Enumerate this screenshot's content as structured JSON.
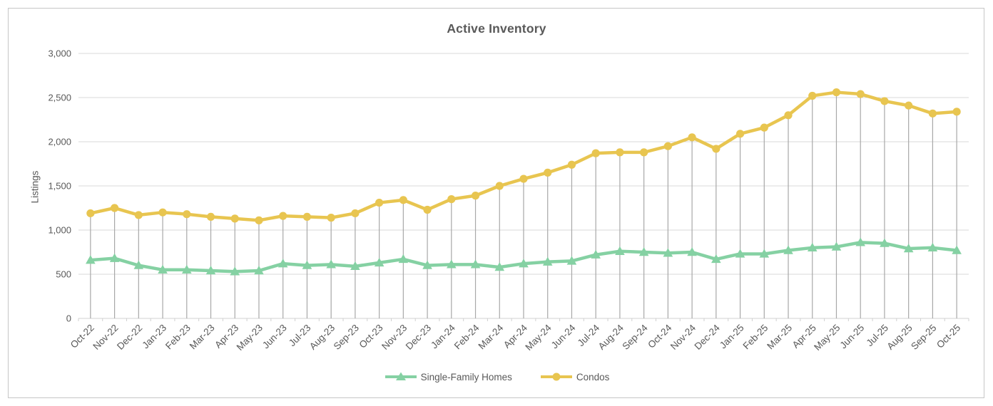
{
  "chart_data": {
    "type": "line",
    "title": "Active Inventory",
    "xlabel": "",
    "ylabel": "Listings",
    "ylim": [
      0,
      3000
    ],
    "ytick_step": 500,
    "ytick_labels": [
      "0",
      "500",
      "1,000",
      "1,500",
      "2,000",
      "2,500",
      "3,000"
    ],
    "grid": true,
    "drop_lines": true,
    "legend_position": "bottom",
    "categories": [
      "Oct-22",
      "Nov-22",
      "Dec-22",
      "Jan-23",
      "Feb-23",
      "Mar-23",
      "Apr-23",
      "May-23",
      "Jun-23",
      "Jul-23",
      "Aug-23",
      "Sep-23",
      "Oct-23",
      "Nov-23",
      "Dec-23",
      "Jan-24",
      "Feb-24",
      "Mar-24",
      "Apr-24",
      "May-24",
      "Jun-24",
      "Jul-24",
      "Aug-24",
      "Sep-24",
      "Oct-24",
      "Nov-24",
      "Dec-24",
      "Jan-25",
      "Feb-25",
      "Mar-25",
      "Apr-25",
      "May-25",
      "Jun-25",
      "Jul-25",
      "Aug-25",
      "Sep-25",
      "Oct-25"
    ],
    "series": [
      {
        "name": "Single-Family Homes",
        "marker": "triangle",
        "color": "#85d1a3",
        "values": [
          660,
          680,
          600,
          550,
          550,
          540,
          530,
          540,
          620,
          600,
          610,
          590,
          630,
          670,
          600,
          610,
          610,
          580,
          620,
          640,
          650,
          720,
          760,
          750,
          740,
          750,
          670,
          730,
          730,
          770,
          800,
          810,
          860,
          850,
          790,
          800,
          770
        ]
      },
      {
        "name": "Condos",
        "marker": "circle",
        "color": "#e8c550",
        "values": [
          1190,
          1250,
          1170,
          1200,
          1180,
          1150,
          1130,
          1110,
          1160,
          1150,
          1140,
          1190,
          1310,
          1340,
          1230,
          1350,
          1390,
          1500,
          1580,
          1650,
          1740,
          1870,
          1880,
          1880,
          1950,
          2050,
          1920,
          2090,
          2160,
          2300,
          2520,
          2560,
          2540,
          2460,
          2410,
          2320,
          2340
        ]
      }
    ],
    "colors": {
      "gridline": "#d9d9d9",
      "axis_line": "#d0d0d0",
      "drop_line": "#a8a8a8",
      "text": "#595959"
    }
  }
}
